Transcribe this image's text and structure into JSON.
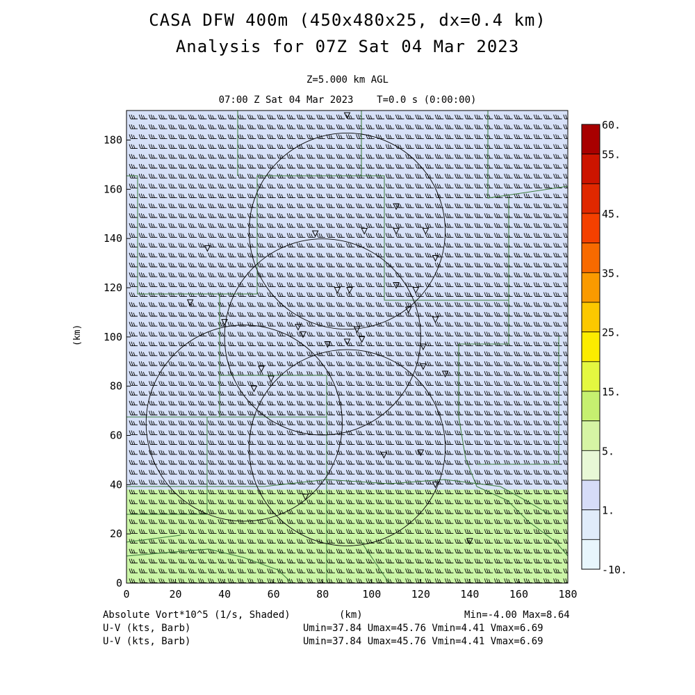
{
  "header": {
    "title_line1": "CASA DFW 400m (450x480x25, dx=0.4 km)",
    "title_line2": "Analysis for 07Z Sat 04 Mar 2023",
    "level": "Z=5.000 km AGL",
    "valid_time": "07:00 Z Sat 04 Mar 2023    T=0.0 s (0:00:00)"
  },
  "footer": {
    "field1": "Absolute Vort*10^5 (1/s, Shaded)",
    "xunit": "(km)",
    "minmax": "Min=-4.00 Max=8.64",
    "field2": "U-V (kts, Barb)",
    "field3": "U-V (kts, Barb)",
    "range2": "Umin=37.84 Umax=45.76 Vmin=4.41 Vmax=6.69",
    "range3": "Umin=37.84 Umax=45.76 Vmin=4.41 Vmax=6.69"
  },
  "colors": {
    "background": "#ffffff",
    "map_lines": "#3a7a3a",
    "range_rings": "#000000",
    "barbs": "#000000"
  },
  "chart_data": {
    "type": "heatmap",
    "title": "CASA DFW 400m (450x480x25, dx=0.4 km)",
    "ylabel": "(km)",
    "xlabel": "(km)",
    "xlim": [
      0,
      180
    ],
    "ylim": [
      0,
      192
    ],
    "xticks": [
      "0",
      "20",
      "40",
      "60",
      "80",
      "100",
      "120",
      "140",
      "160",
      "180"
    ],
    "yticks": [
      "0",
      "20",
      "40",
      "60",
      "80",
      "100",
      "120",
      "140",
      "160",
      "180"
    ],
    "colorbar": {
      "labels": [
        "60.",
        "55.",
        "45.",
        "35.",
        "25.",
        "15.",
        "5.",
        "1.",
        "-10."
      ],
      "label_levels": [
        60,
        55,
        45,
        35,
        25,
        15,
        5,
        1,
        -10
      ],
      "bins": [
        {
          "color": "#a80000"
        },
        {
          "color": "#cc1400"
        },
        {
          "color": "#e02800"
        },
        {
          "color": "#f44000"
        },
        {
          "color": "#f86a00"
        },
        {
          "color": "#fa9a00"
        },
        {
          "color": "#fcc800"
        },
        {
          "color": "#fcec00"
        },
        {
          "color": "#e4f840"
        },
        {
          "color": "#c6f070"
        },
        {
          "color": "#d6f4a4"
        },
        {
          "color": "#e8f8d6"
        },
        {
          "color": "#d6dcf8"
        },
        {
          "color": "#e0ecfa"
        },
        {
          "color": "#e8f6fc"
        }
      ]
    },
    "fields": [
      {
        "name": "absolute vorticity",
        "range": [
          -4.0,
          8.64
        ]
      },
      {
        "name": "U-V wind",
        "u_range": [
          37.84,
          45.76
        ],
        "v_range": [
          4.41,
          6.69
        ]
      }
    ],
    "regions": [
      {
        "value": "positive",
        "color": "#cbf5a7",
        "y_range": [
          0,
          38
        ]
      },
      {
        "value": "near zero",
        "color": "#d7e1f8",
        "y_range": [
          38,
          192
        ]
      }
    ],
    "range_rings": [
      {
        "center": [
          90,
          143
        ],
        "radius": 40
      },
      {
        "center": [
          80,
          100
        ],
        "radius": 40
      },
      {
        "center": [
          48,
          65
        ],
        "radius": 40
      },
      {
        "center": [
          90,
          55
        ],
        "radius": 40
      }
    ],
    "stations": [
      {
        "x": 90,
        "y": 190
      },
      {
        "x": 110,
        "y": 153
      },
      {
        "x": 97,
        "y": 143
      },
      {
        "x": 110,
        "y": 143
      },
      {
        "x": 122,
        "y": 143
      },
      {
        "x": 77,
        "y": 142
      },
      {
        "x": 33,
        "y": 136
      },
      {
        "x": 126,
        "y": 132
      },
      {
        "x": 110,
        "y": 121
      },
      {
        "x": 118,
        "y": 119
      },
      {
        "x": 86,
        "y": 119
      },
      {
        "x": 91,
        "y": 119
      },
      {
        "x": 26,
        "y": 114
      },
      {
        "x": 115,
        "y": 111
      },
      {
        "x": 126,
        "y": 107
      },
      {
        "x": 40,
        "y": 106
      },
      {
        "x": 70,
        "y": 104
      },
      {
        "x": 94,
        "y": 103
      },
      {
        "x": 72,
        "y": 101
      },
      {
        "x": 96,
        "y": 99
      },
      {
        "x": 90,
        "y": 98
      },
      {
        "x": 82,
        "y": 97
      },
      {
        "x": 121,
        "y": 96
      },
      {
        "x": 121,
        "y": 88
      },
      {
        "x": 130,
        "y": 85
      },
      {
        "x": 55,
        "y": 87
      },
      {
        "x": 59,
        "y": 83
      },
      {
        "x": 52,
        "y": 79
      },
      {
        "x": 120,
        "y": 53
      },
      {
        "x": 105,
        "y": 52
      },
      {
        "x": 126,
        "y": 40
      },
      {
        "x": 73,
        "y": 35
      },
      {
        "x": 140,
        "y": 17
      }
    ]
  }
}
